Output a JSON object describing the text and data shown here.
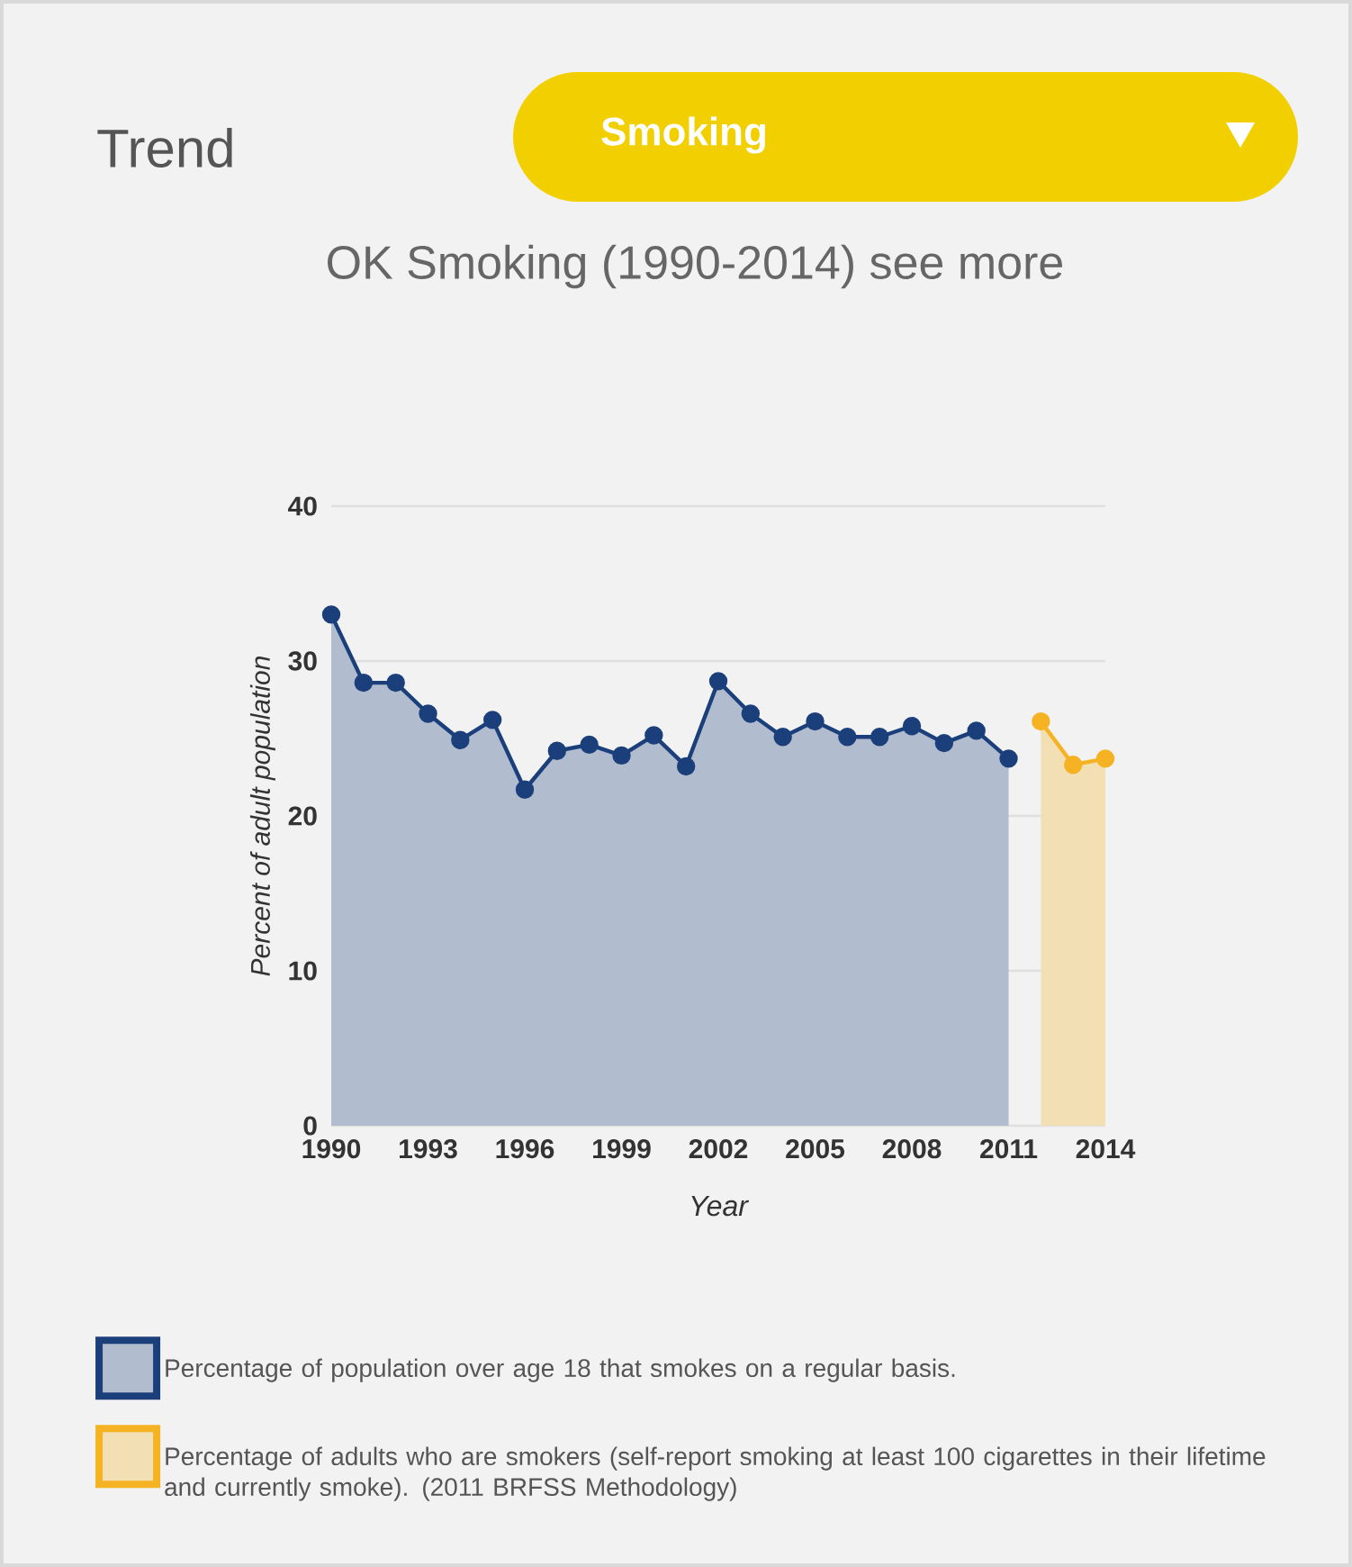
{
  "chart_data": {
    "type": "area",
    "title": "OK Smoking (1990-2014) see more",
    "annotations": [
      "Trend",
      "Smoking"
    ],
    "xlabel": "Year",
    "ylabel": "Percent of adult population",
    "series": [
      {
        "name": "Percentage of population over age 18 that smokes on a regular basis.",
        "color": "#1b3f7a",
        "x": [
          1990,
          1991,
          1992,
          1993,
          1994,
          1995,
          1996,
          1997,
          1998,
          1999,
          2000,
          2001,
          2002,
          2003,
          2004,
          2005,
          2006,
          2007,
          2008,
          2009,
          2010,
          2011
        ],
        "values": [
          33.0,
          28.6,
          28.6,
          26.6,
          24.9,
          26.2,
          21.7,
          24.2,
          24.6,
          23.9,
          25.2,
          23.2,
          28.7,
          26.6,
          25.1,
          26.1,
          25.1,
          25.1,
          25.8,
          24.7,
          25.5,
          23.7
        ]
      },
      {
        "name": "Percentage of adults who are smokers (self-report smoking at least 100 cigarettes in their lifetime and currently smoke). (2011 BRFSS Methodology)",
        "color": "#f5b324",
        "x": [
          2012,
          2013,
          2014
        ],
        "values": [
          26.1,
          23.3,
          23.7
        ]
      }
    ],
    "xlim": [
      1990,
      2014
    ],
    "xticks": [
      1990,
      1993,
      1996,
      1999,
      2002,
      2005,
      2008,
      2011,
      2014
    ],
    "ylim": [
      0,
      40
    ],
    "yticks": [
      0,
      10,
      20,
      30,
      40
    ],
    "grid": "y",
    "legend": "bottom",
    "marker": "circle"
  }
}
